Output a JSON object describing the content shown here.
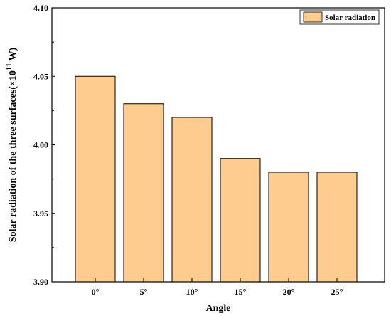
{
  "chart_data": {
    "type": "bar",
    "categories": [
      "0°",
      "5°",
      "10°",
      "15°",
      "20°",
      "25°"
    ],
    "series": [
      {
        "name": "Solar radiation",
        "values": [
          4.05,
          4.03,
          4.02,
          3.99,
          3.98,
          3.98
        ],
        "color": "#FFCC8F"
      }
    ],
    "xlabel": "Angle",
    "ylabel": {
      "text": "Solar radiation of the three surfaces(",
      "mult": "×10",
      "exponent": "11",
      "unit": " W)"
    },
    "ylim": [
      3.9,
      4.1
    ],
    "yticks": [
      "3.90",
      "3.95",
      "4.00",
      "4.05",
      "4.10"
    ],
    "grid": false,
    "legend_position": "top-right"
  }
}
